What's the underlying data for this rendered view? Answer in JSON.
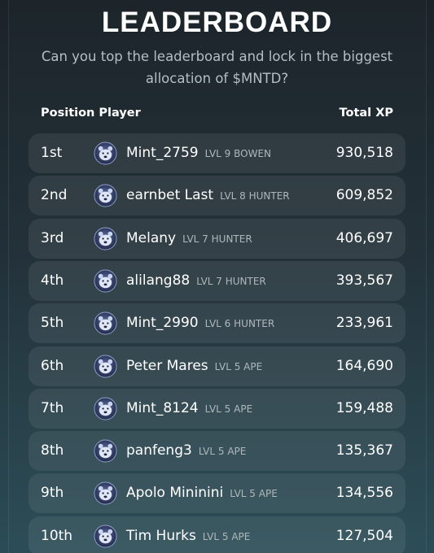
{
  "header": {
    "title": "LEADERBOARD",
    "subtitle_lines": [
      "Can you top the leaderboard and lock in the biggest",
      "allocation of $MNTD?"
    ]
  },
  "table": {
    "columns": [
      "Position Player",
      "Total XP"
    ],
    "rows": [
      {
        "position": "1st",
        "player": "Mint_2759",
        "level": "LVL 9 BOWEN",
        "xp": "930,518"
      },
      {
        "position": "2nd",
        "player": "earnbet Last",
        "level": "LVL 8 HUNTER",
        "xp": "609,852"
      },
      {
        "position": "3rd",
        "player": "Melany",
        "level": "LVL 7 HUNTER",
        "xp": "406,697"
      },
      {
        "position": "4th",
        "player": "alilang88",
        "level": "LVL 7 HUNTER",
        "xp": "393,567"
      },
      {
        "position": "5th",
        "player": "Mint_2990",
        "level": "LVL 6 HUNTER",
        "xp": "233,961"
      },
      {
        "position": "6th",
        "player": "Peter Mares",
        "level": "LVL 5 APE",
        "xp": "164,690"
      },
      {
        "position": "7th",
        "player": "Mint_8124",
        "level": "LVL 5 APE",
        "xp": "159,488"
      },
      {
        "position": "8th",
        "player": "panfeng3",
        "level": "LVL 5 APE",
        "xp": "135,367"
      },
      {
        "position": "9th",
        "player": "Apolo Mininini",
        "level": "LVL 5 APE",
        "xp": "134,556"
      },
      {
        "position": "10th",
        "player": "Tim Hurks",
        "level": "LVL 5 APE",
        "xp": "127,504"
      }
    ]
  }
}
